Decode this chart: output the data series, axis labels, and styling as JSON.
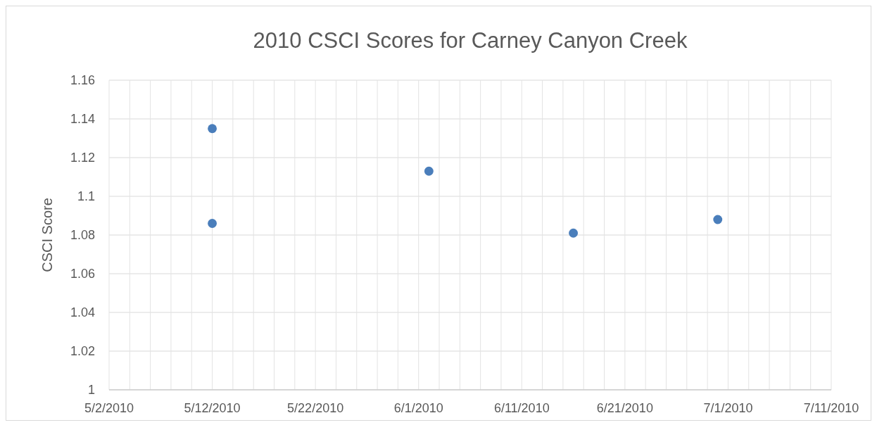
{
  "chart_data": {
    "type": "scatter",
    "title": "2010 CSCI Scores for Carney Canyon Creek",
    "ylabel": "CSCI Score",
    "x": [
      "2010-05-12",
      "2010-05-12",
      "2010-06-02",
      "2010-06-16",
      "2010-06-30"
    ],
    "series": [
      {
        "color": "#4a7ebb",
        "values": [
          1.135,
          1.086,
          1.113,
          1.081,
          1.088
        ]
      }
    ],
    "xlim": [
      "2010-05-02",
      "2010-07-11"
    ],
    "xticks": [
      {
        "value": "2010-05-02",
        "label": "5/2/2010"
      },
      {
        "value": "2010-05-04",
        "label": null
      },
      {
        "value": "2010-05-06",
        "label": null
      },
      {
        "value": "2010-05-08",
        "label": null
      },
      {
        "value": "2010-05-10",
        "label": null
      },
      {
        "value": "2010-05-12",
        "label": "5/12/2010"
      },
      {
        "value": "2010-05-14",
        "label": null
      },
      {
        "value": "2010-05-16",
        "label": null
      },
      {
        "value": "2010-05-18",
        "label": null
      },
      {
        "value": "2010-05-20",
        "label": null
      },
      {
        "value": "2010-05-22",
        "label": "5/22/2010"
      },
      {
        "value": "2010-05-24",
        "label": null
      },
      {
        "value": "2010-05-26",
        "label": null
      },
      {
        "value": "2010-05-28",
        "label": null
      },
      {
        "value": "2010-05-30",
        "label": null
      },
      {
        "value": "2010-06-01",
        "label": "6/1/2010"
      },
      {
        "value": "2010-06-03",
        "label": null
      },
      {
        "value": "2010-06-05",
        "label": null
      },
      {
        "value": "2010-06-07",
        "label": null
      },
      {
        "value": "2010-06-09",
        "label": null
      },
      {
        "value": "2010-06-11",
        "label": "6/11/2010"
      },
      {
        "value": "2010-06-13",
        "label": null
      },
      {
        "value": "2010-06-15",
        "label": null
      },
      {
        "value": "2010-06-17",
        "label": null
      },
      {
        "value": "2010-06-19",
        "label": null
      },
      {
        "value": "2010-06-21",
        "label": "6/21/2010"
      },
      {
        "value": "2010-06-23",
        "label": null
      },
      {
        "value": "2010-06-25",
        "label": null
      },
      {
        "value": "2010-06-27",
        "label": null
      },
      {
        "value": "2010-06-29",
        "label": null
      },
      {
        "value": "2010-07-01",
        "label": "7/1/2010"
      },
      {
        "value": "2010-07-03",
        "label": null
      },
      {
        "value": "2010-07-05",
        "label": null
      },
      {
        "value": "2010-07-07",
        "label": null
      },
      {
        "value": "2010-07-09",
        "label": null
      },
      {
        "value": "2010-07-11",
        "label": "7/11/2010"
      }
    ],
    "ylim": [
      1,
      1.16
    ],
    "yticks": [
      1,
      1.02,
      1.04,
      1.06,
      1.08,
      1.1,
      1.12,
      1.14,
      1.16
    ],
    "grid": true,
    "marker": "circle"
  }
}
